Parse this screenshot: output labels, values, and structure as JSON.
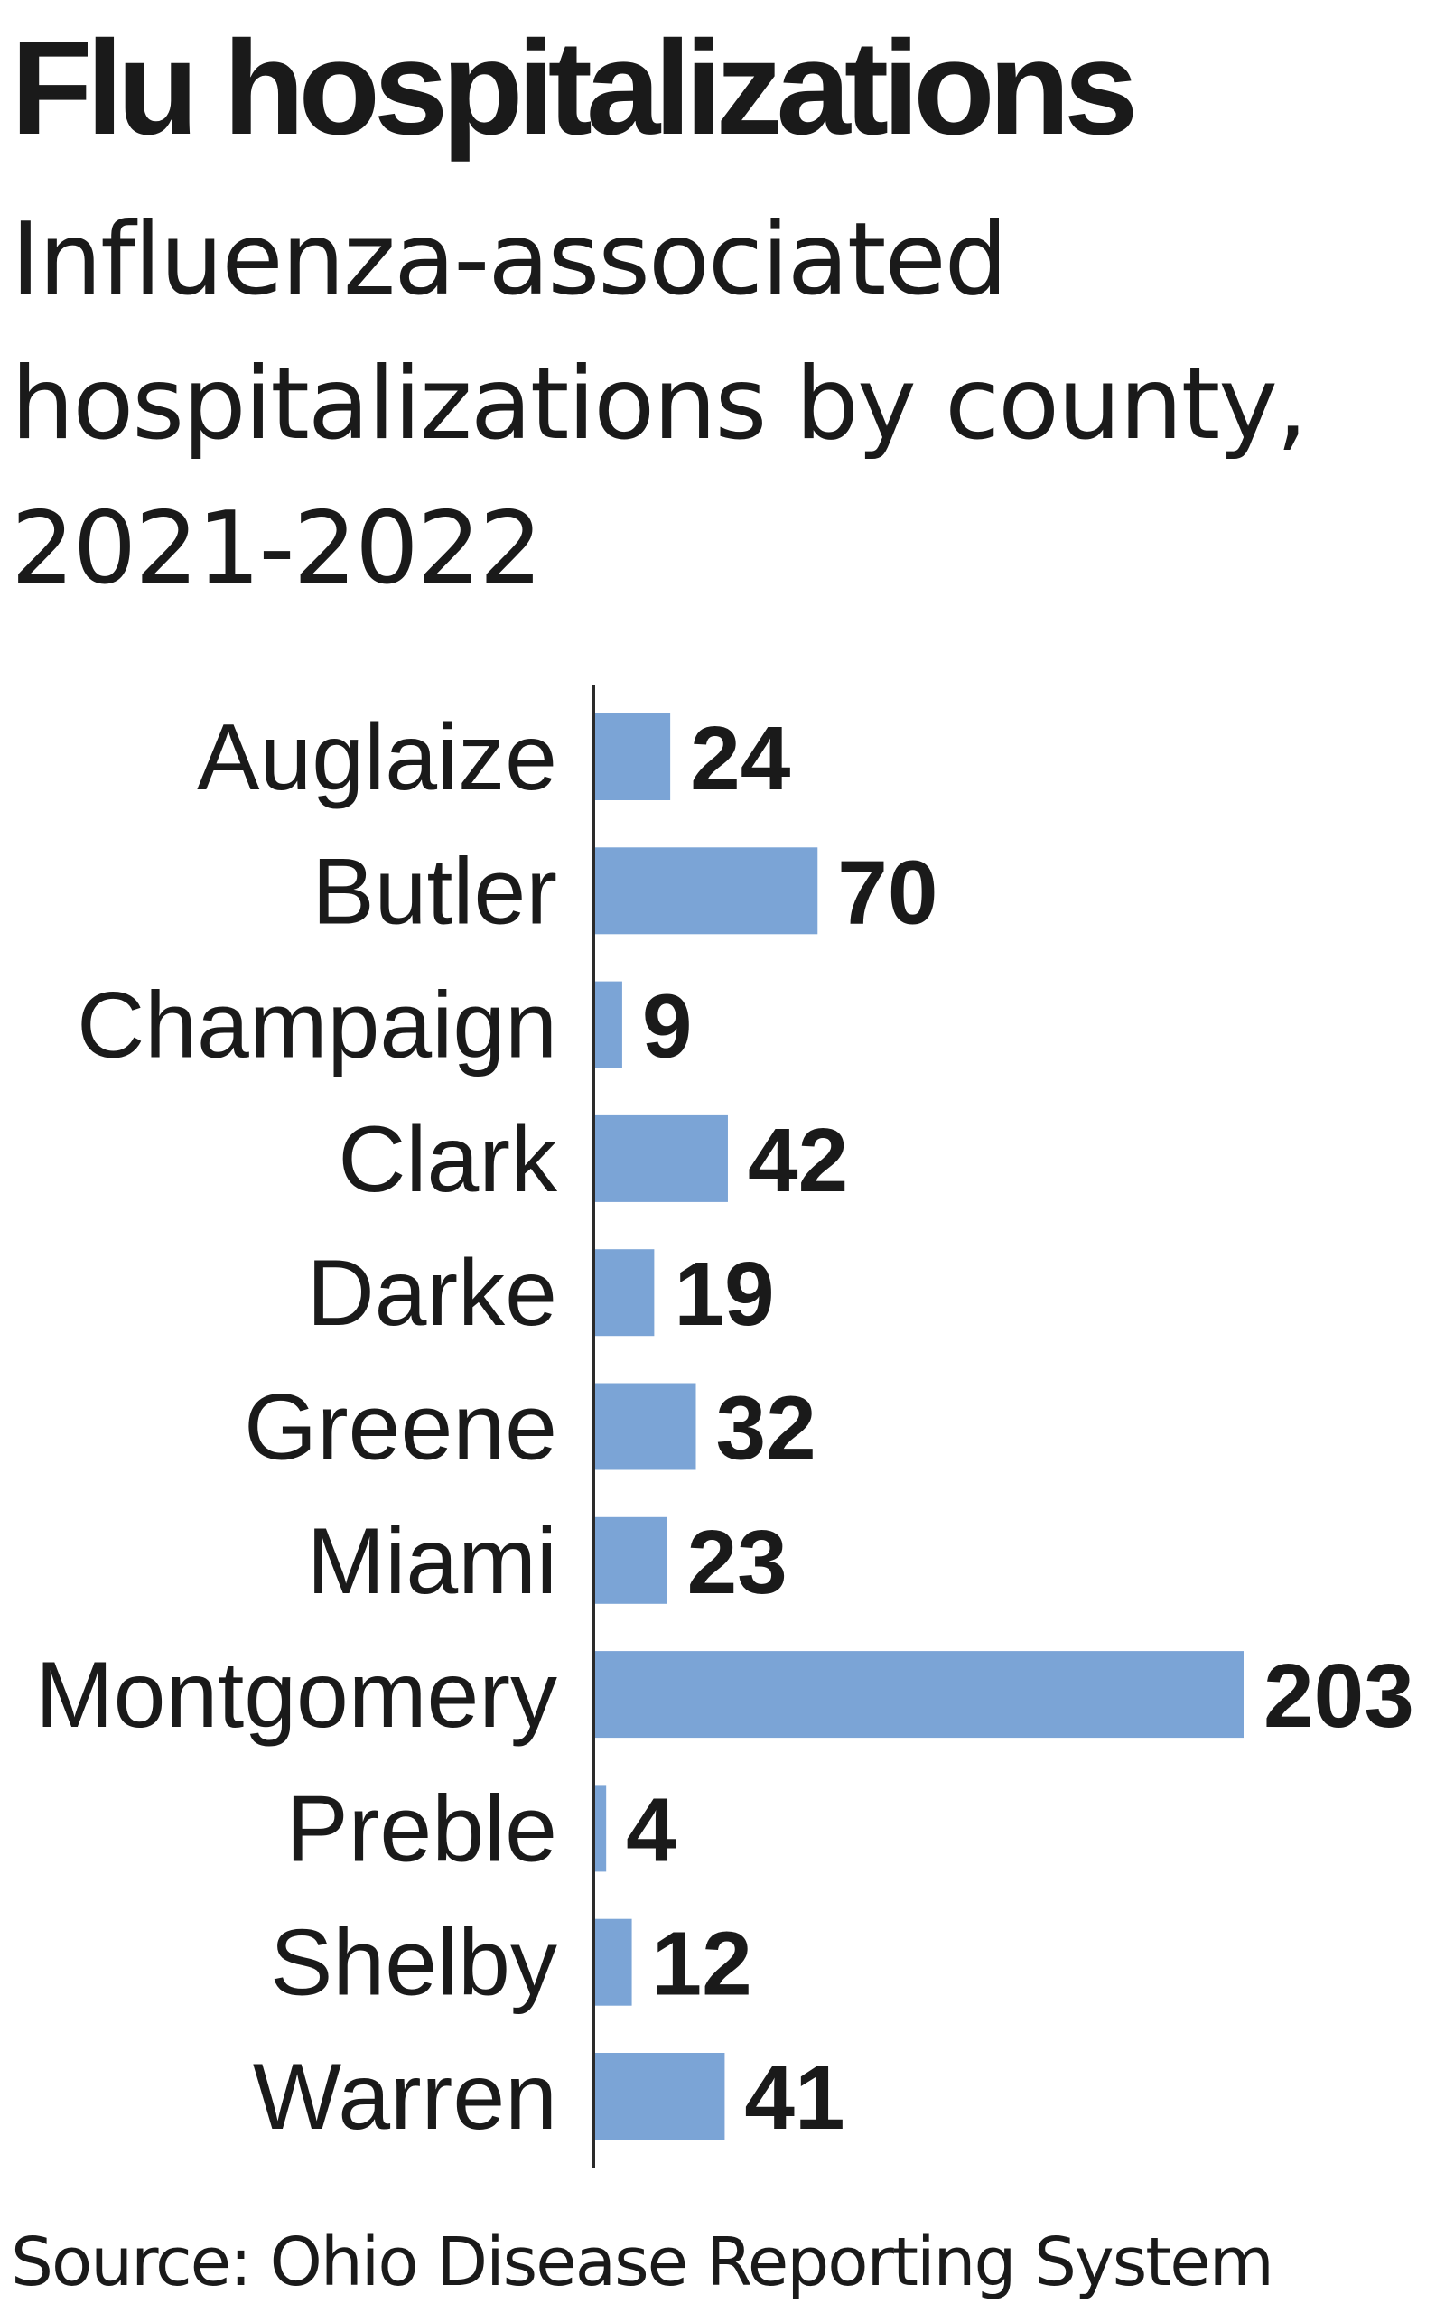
{
  "title": "Flu hospitalizations",
  "subtitle": "Influenza-associated hospitalizations by county, 2021-2022",
  "source": "Source: Ohio Disease Reporting System",
  "chart_data": {
    "type": "bar",
    "orientation": "horizontal",
    "title": "Flu hospitalizations",
    "subtitle": "Influenza-associated hospitalizations by county, 2021-2022",
    "categories": [
      "Auglaize",
      "Butler",
      "Champaign",
      "Clark",
      "Darke",
      "Greene",
      "Miami",
      "Montgomery",
      "Preble",
      "Shelby",
      "Warren"
    ],
    "values": [
      24,
      70,
      9,
      42,
      19,
      32,
      23,
      203,
      4,
      12,
      41
    ],
    "xlim": [
      0,
      203
    ],
    "grid": false,
    "data_labels": true,
    "bar_color": "#7ba4d6",
    "source": "Source: Ohio Disease Reporting System"
  }
}
